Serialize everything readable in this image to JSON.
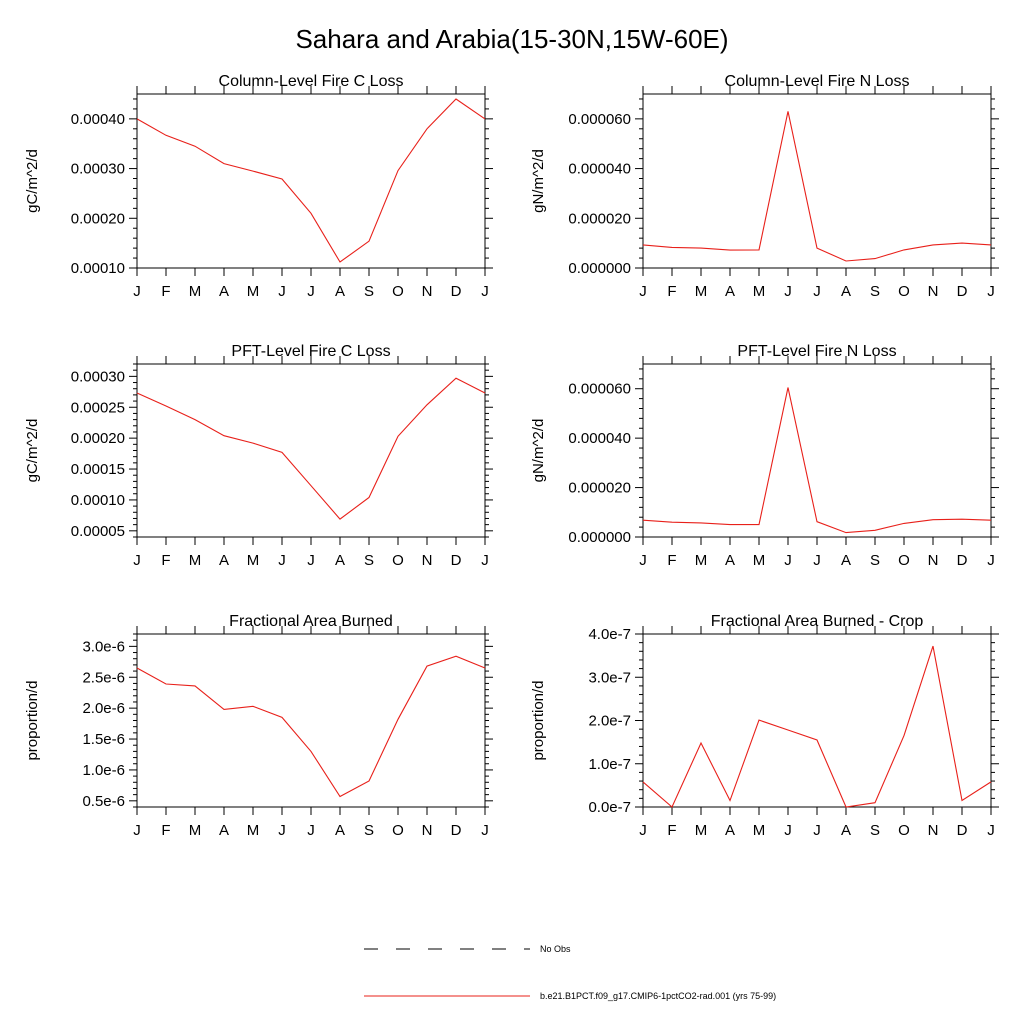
{
  "figure": {
    "title": "Sahara and Arabia(15-30N,15W-60E)"
  },
  "colors": {
    "series": "#e8201a",
    "obs": "#000000"
  },
  "chart_data": [
    {
      "type": "line",
      "title": "Column-Level Fire C Loss",
      "ylabel": "gC/m^2/d",
      "categories": [
        "J",
        "F",
        "M",
        "A",
        "M",
        "J",
        "J",
        "A",
        "S",
        "O",
        "N",
        "D",
        "J"
      ],
      "ylim": [
        0.0001,
        0.00045
      ],
      "yticks": [
        0.0001,
        0.0002,
        0.0003,
        0.0004
      ],
      "ytick_labels": [
        "0.00010",
        "0.00020",
        "0.00030",
        "0.00040"
      ],
      "series": [
        {
          "values": [
            0.0004,
            0.000367,
            0.000345,
            0.00031,
            0.000295,
            0.000279,
            0.00021,
            0.000112,
            0.000154,
            0.000296,
            0.00038,
            0.00044,
            0.0004
          ]
        }
      ]
    },
    {
      "type": "line",
      "title": "Column-Level Fire N Loss",
      "ylabel": "gN/m^2/d",
      "categories": [
        "J",
        "F",
        "M",
        "A",
        "M",
        "J",
        "J",
        "A",
        "S",
        "O",
        "N",
        "D",
        "J"
      ],
      "ylim": [
        0,
        7e-05
      ],
      "yticks": [
        0,
        2e-05,
        4e-05,
        6e-05
      ],
      "ytick_labels": [
        "0.000000",
        "0.000020",
        "0.000040",
        "0.000060"
      ],
      "series": [
        {
          "values": [
            9.3e-06,
            8.3e-06,
            8e-06,
            7.2e-06,
            7.3e-06,
            6.3e-05,
            8e-06,
            2.8e-06,
            3.8e-06,
            7.3e-06,
            9.3e-06,
            1e-05,
            9.3e-06
          ]
        }
      ]
    },
    {
      "type": "line",
      "title": "PFT-Level Fire C Loss",
      "ylabel": "gC/m^2/d",
      "categories": [
        "J",
        "F",
        "M",
        "A",
        "M",
        "J",
        "J",
        "A",
        "S",
        "O",
        "N",
        "D",
        "J"
      ],
      "ylim": [
        4e-05,
        0.00032
      ],
      "yticks": [
        5e-05,
        0.0001,
        0.00015,
        0.0002,
        0.00025,
        0.0003
      ],
      "ytick_labels": [
        "0.00005",
        "0.00010",
        "0.00015",
        "0.00020",
        "0.00025",
        "0.00030"
      ],
      "series": [
        {
          "values": [
            0.000273,
            0.000252,
            0.00023,
            0.000204,
            0.000192,
            0.000177,
            0.000123,
            6.9e-05,
            0.000104,
            0.000203,
            0.000254,
            0.000297,
            0.000273
          ]
        }
      ]
    },
    {
      "type": "line",
      "title": "PFT-Level Fire N Loss",
      "ylabel": "gN/m^2/d",
      "categories": [
        "J",
        "F",
        "M",
        "A",
        "M",
        "J",
        "J",
        "A",
        "S",
        "O",
        "N",
        "D",
        "J"
      ],
      "ylim": [
        0,
        7e-05
      ],
      "yticks": [
        0,
        2e-05,
        4e-05,
        6e-05
      ],
      "ytick_labels": [
        "0.000000",
        "0.000020",
        "0.000040",
        "0.000060"
      ],
      "series": [
        {
          "values": [
            6.8e-06,
            6e-06,
            5.7e-06,
            5e-06,
            5e-06,
            6.05e-05,
            6.2e-06,
            1.8e-06,
            2.7e-06,
            5.5e-06,
            7e-06,
            7.2e-06,
            6.8e-06
          ]
        }
      ]
    },
    {
      "type": "line",
      "title": "Fractional Area Burned",
      "ylabel": "proportion/d",
      "categories": [
        "J",
        "F",
        "M",
        "A",
        "M",
        "J",
        "J",
        "A",
        "S",
        "O",
        "N",
        "D",
        "J"
      ],
      "ylim": [
        4e-07,
        3.2e-06
      ],
      "yticks": [
        5e-07,
        1e-06,
        1.5e-06,
        2e-06,
        2.5e-06,
        3e-06
      ],
      "ytick_labels": [
        "0.5e-6",
        "1.0e-6",
        "1.5e-6",
        "2.0e-6",
        "2.5e-6",
        "3.0e-6"
      ],
      "series": [
        {
          "values": [
            2.65e-06,
            2.39e-06,
            2.36e-06,
            1.98e-06,
            2.03e-06,
            1.85e-06,
            1.3e-06,
            5.7e-07,
            8.2e-07,
            1.82e-06,
            2.68e-06,
            2.84e-06,
            2.65e-06
          ]
        }
      ]
    },
    {
      "type": "line",
      "title": "Fractional Area Burned - Crop",
      "ylabel": "proportion/d",
      "categories": [
        "J",
        "F",
        "M",
        "A",
        "M",
        "J",
        "J",
        "A",
        "S",
        "O",
        "N",
        "D",
        "J"
      ],
      "ylim": [
        0,
        4e-07
      ],
      "yticks": [
        0,
        1e-07,
        2e-07,
        3e-07,
        4e-07
      ],
      "ytick_labels": [
        "0.0e-7",
        "1.0e-7",
        "2.0e-7",
        "3.0e-7",
        "4.0e-7"
      ],
      "series": [
        {
          "values": [
            5.8e-08,
            0.0,
            1.48e-07,
            1.5e-08,
            2.01e-07,
            1.78e-07,
            1.55e-07,
            0.0,
            1e-08,
            1.65e-07,
            3.72e-07,
            1.5e-08,
            5.8e-08
          ]
        }
      ]
    }
  ],
  "legend": {
    "items": [
      {
        "label": "No Obs",
        "style": "dashed"
      },
      {
        "label": "b.e21.B1PCT.f09_g17.CMIP6-1pctCO2-rad.001 (yrs 75-99)",
        "style": "solid"
      }
    ]
  }
}
